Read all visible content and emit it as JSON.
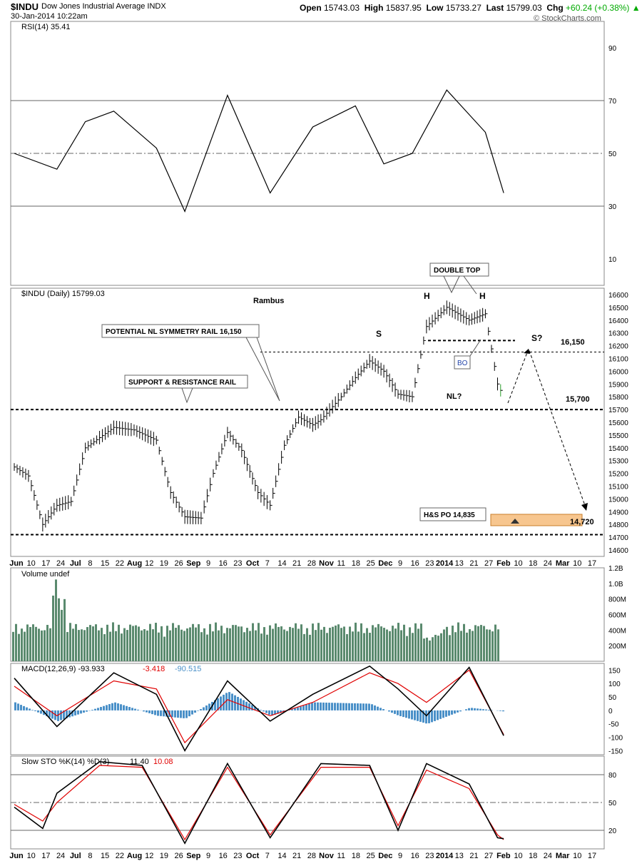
{
  "header": {
    "symbol": "$INDU",
    "name": "Dow Jones Industrial Average",
    "exchange": "INDX",
    "date": "30-Jan-2014 10:22am",
    "open_label": "Open",
    "open": "15743.03",
    "high_label": "High",
    "high": "15837.95",
    "low_label": "Low",
    "low": "15733.27",
    "last_label": "Last",
    "last": "15799.03",
    "chg_label": "Chg",
    "chg": "+60.24 (+0.38%)",
    "watermark": "© StockCharts.com"
  },
  "colors": {
    "volume": "#5a8a6e",
    "macd_hist": "#4a90c8",
    "signal": "#e00000",
    "highlight": "#f7c68f",
    "up_bar": "#2a9d2a"
  },
  "rsi_panel": {
    "title": "RSI(14) 35.41",
    "ticks": [
      "90",
      "70",
      "50",
      "30",
      "10"
    ]
  },
  "price_panel": {
    "title": "$INDU (Daily) 15799.03",
    "author": "Rambus",
    "ticks": [
      "16600",
      "16500",
      "16400",
      "16300",
      "16200",
      "16100",
      "16000",
      "15900",
      "15800",
      "15700",
      "15600",
      "15500",
      "15400",
      "15300",
      "15200",
      "15100",
      "15000",
      "14900",
      "14800",
      "14700",
      "14600"
    ],
    "annotations": {
      "double_top": "DOUBLE TOP",
      "h1": "H",
      "h2": "H",
      "s1": "S",
      "s2": "S?",
      "bo": "BO",
      "nl": "NL?",
      "nl_rail": "POTENTIAL NL SYMMETRY RAIL 16,150",
      "sr_rail": "SUPPORT & RESISTANCE RAIL",
      "lvl_16150": "16,150",
      "lvl_15700": "15,700",
      "lvl_14720": "14,720",
      "po": "H&S PO 14,835"
    }
  },
  "x_axis": [
    "Jun",
    "10",
    "17",
    "24",
    "Jul",
    "8",
    "15",
    "22",
    "Aug",
    "12",
    "19",
    "26",
    "Sep",
    "9",
    "16",
    "23",
    "Oct",
    "7",
    "14",
    "21",
    "28",
    "Nov",
    "11",
    "18",
    "25",
    "Dec",
    "9",
    "16",
    "23",
    "2014",
    "13",
    "21",
    "27",
    "Feb",
    "10",
    "18",
    "24",
    "Mar",
    "10",
    "17"
  ],
  "volume_panel": {
    "title": "Volume undef",
    "ticks": [
      "1.2B",
      "1.0B",
      "800M",
      "600M",
      "400M",
      "200M"
    ]
  },
  "macd_panel": {
    "title": "MACD(12,26,9)",
    "v1": "-93.933",
    "v2": "-3.418",
    "v3": "-90.515",
    "ticks": [
      "150",
      "100",
      "50",
      "0",
      "-50",
      "-100",
      "-150"
    ]
  },
  "sto_panel": {
    "title": "Slow STO %K(14) %D(3)",
    "k": "11.40",
    "d": "10.08",
    "ticks": [
      "80",
      "50",
      "20"
    ]
  },
  "chart_data": {
    "type": "line",
    "symbol": "$INDU",
    "price": {
      "x": [
        "2013-06-03",
        "2013-06-10",
        "2013-06-17",
        "2013-06-24",
        "2013-07-01",
        "2013-07-08",
        "2013-07-15",
        "2013-07-22",
        "2013-08-01",
        "2013-08-12",
        "2013-08-19",
        "2013-08-26",
        "2013-09-03",
        "2013-09-09",
        "2013-09-16",
        "2013-09-23",
        "2013-10-01",
        "2013-10-07",
        "2013-10-14",
        "2013-10-21",
        "2013-10-28",
        "2013-11-01",
        "2013-11-11",
        "2013-11-18",
        "2013-11-25",
        "2013-12-02",
        "2013-12-09",
        "2013-12-16",
        "2013-12-23",
        "2014-01-02",
        "2014-01-13",
        "2014-01-21",
        "2014-01-27",
        "2014-01-30"
      ],
      "close": [
        15250,
        15180,
        14800,
        14950,
        14980,
        15400,
        15480,
        15560,
        15540,
        15460,
        15050,
        14860,
        14850,
        15200,
        15520,
        15380,
        15050,
        14950,
        15420,
        15640,
        15580,
        15620,
        15800,
        15950,
        16080,
        16000,
        15820,
        15800,
        16350,
        16500,
        16400,
        16450,
        15900,
        15800
      ],
      "ylim": [
        14550,
        16650
      ]
    },
    "levels": {
      "neckline": 15700,
      "symmetry_rail": 16150,
      "support": 14720,
      "target": 14835
    },
    "rsi": {
      "x": [
        "2013-06-03",
        "2013-06-24",
        "2013-07-08",
        "2013-07-22",
        "2013-08-12",
        "2013-08-26",
        "2013-09-16",
        "2013-10-07",
        "2013-10-28",
        "2013-11-18",
        "2013-12-02",
        "2013-12-16",
        "2014-01-02",
        "2014-01-21",
        "2014-01-30"
      ],
      "values": [
        50,
        44,
        62,
        66,
        52,
        28,
        72,
        35,
        60,
        68,
        46,
        50,
        74,
        58,
        35
      ],
      "ylim": [
        0,
        100
      ]
    },
    "volume": {
      "ylim": [
        0,
        1.2
      ]
    },
    "macd": {
      "x": [
        "2013-06-03",
        "2013-06-24",
        "2013-07-22",
        "2013-08-12",
        "2013-08-26",
        "2013-09-16",
        "2013-10-07",
        "2013-10-28",
        "2013-11-25",
        "2013-12-09",
        "2013-12-23",
        "2014-01-13",
        "2014-01-30"
      ],
      "macd": [
        120,
        -60,
        140,
        60,
        -150,
        110,
        -40,
        60,
        165,
        80,
        -20,
        160,
        -94
      ],
      "signal": [
        90,
        -20,
        110,
        80,
        -120,
        40,
        -20,
        30,
        140,
        100,
        30,
        150,
        -90
      ],
      "ylim": [
        -165,
        175
      ]
    },
    "stochastic": {
      "x": [
        "2013-06-03",
        "2013-06-17",
        "2013-06-24",
        "2013-07-15",
        "2013-08-05",
        "2013-08-26",
        "2013-09-16",
        "2013-10-07",
        "2013-11-01",
        "2013-11-25",
        "2013-12-09",
        "2013-12-23",
        "2014-01-13",
        "2014-01-27",
        "2014-01-30"
      ],
      "k": [
        45,
        22,
        60,
        94,
        90,
        6,
        92,
        12,
        92,
        90,
        20,
        92,
        70,
        12,
        11
      ],
      "d": [
        48,
        30,
        50,
        90,
        88,
        10,
        88,
        15,
        88,
        88,
        25,
        85,
        65,
        15,
        10
      ],
      "ylim": [
        0,
        100
      ]
    }
  }
}
